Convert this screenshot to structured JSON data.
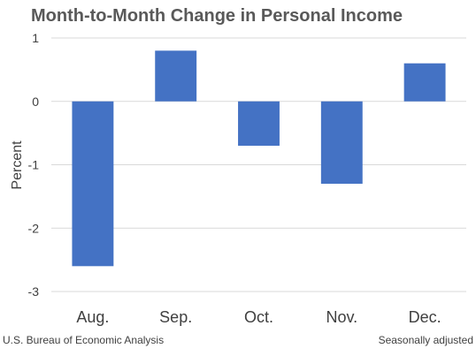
{
  "chart_data": {
    "type": "bar",
    "title": "Month-to-Month Change in Personal Income",
    "ylabel": "Percent",
    "xlabel": "",
    "categories": [
      "Aug.",
      "Sep.",
      "Oct.",
      "Nov.",
      "Dec."
    ],
    "values": [
      -2.6,
      0.8,
      -0.7,
      -1.3,
      0.6
    ],
    "ylim": [
      -3,
      1
    ],
    "yticks": [
      1,
      0,
      -1,
      -2,
      -3
    ],
    "grid": true,
    "bar_color": "#4472c4"
  },
  "footer": {
    "source": "U.S. Bureau of Economic Analysis",
    "note": "Seasonally adjusted"
  }
}
